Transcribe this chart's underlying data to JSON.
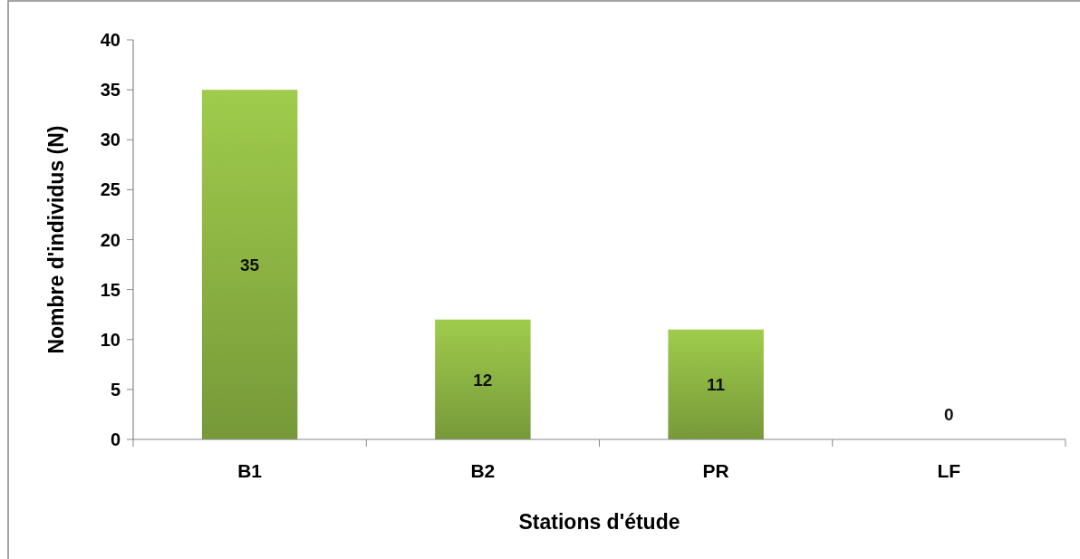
{
  "chart_data": {
    "type": "bar",
    "xlabel": "Stations d'étude",
    "ylabel": "Nombre d'individus (N)",
    "categories": [
      "B1",
      "B2",
      "PR",
      "LF"
    ],
    "values": [
      35,
      12,
      11,
      0
    ],
    "color": "#8cb443",
    "ylim": [
      0,
      40
    ],
    "yticks": [
      0,
      5,
      10,
      15,
      20,
      25,
      30,
      35,
      40
    ],
    "data_labels": true,
    "grid": false
  }
}
